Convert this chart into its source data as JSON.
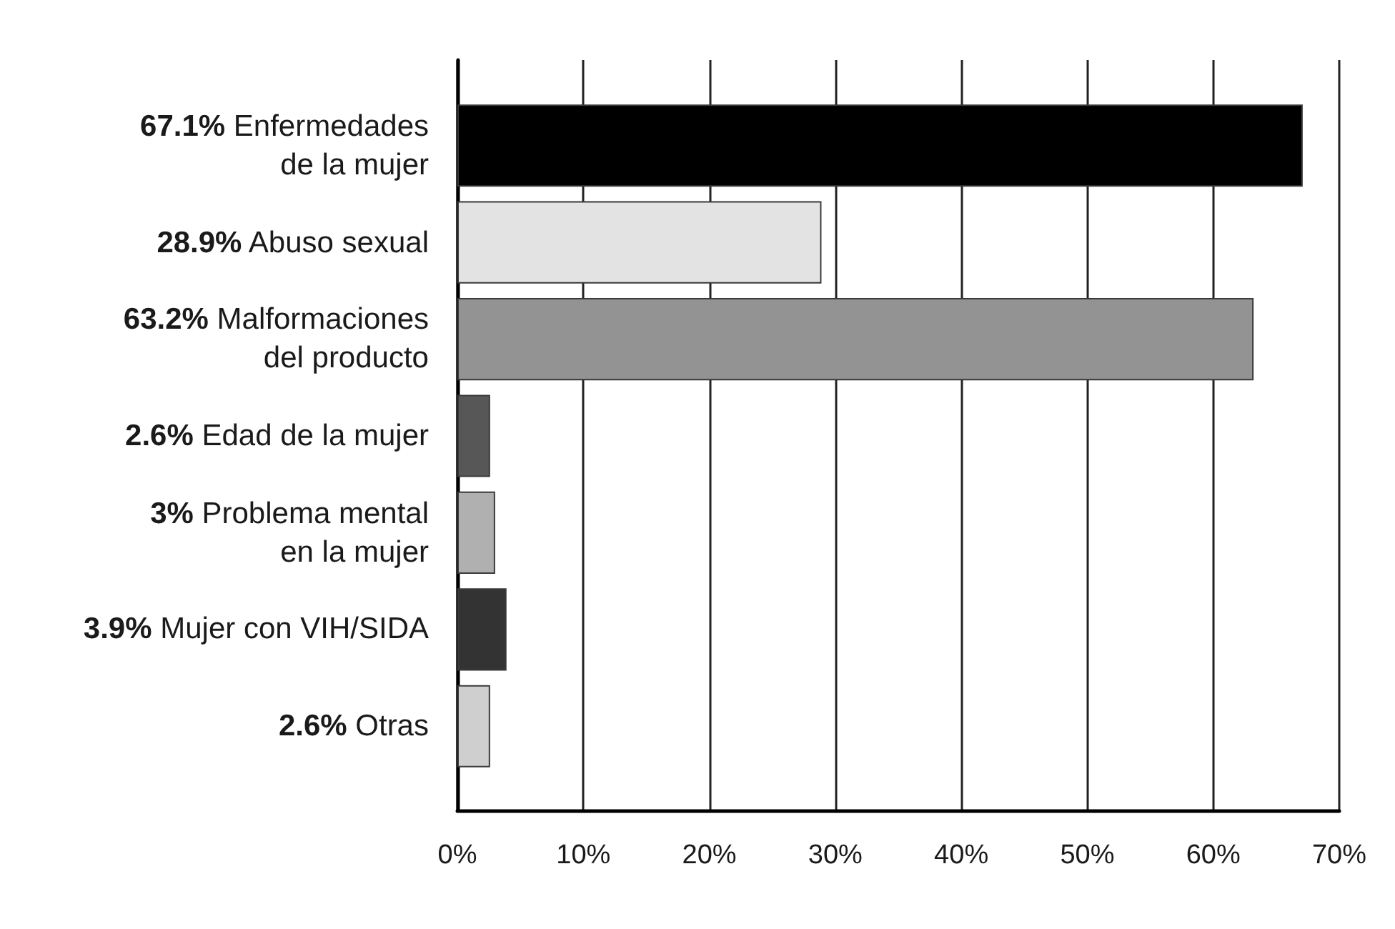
{
  "chart_data": {
    "type": "bar",
    "orientation": "horizontal",
    "categories": [
      "67.1% Enfermedades\nde la mujer",
      "28.9% Abuso sexual",
      "63.2% Malformaciones\ndel producto",
      "2.6% Edad de la mujer",
      "3% Problema mental\nen la mujer",
      "3.9% Mujer con VIH/SIDA",
      "2.6% Otras"
    ],
    "values": [
      67.1,
      28.9,
      63.2,
      2.6,
      3,
      3.9,
      2.6
    ],
    "colors": [
      "#000000",
      "#e3e3e3",
      "#939393",
      "#575757",
      "#b0b0b0",
      "#333333",
      "#cfcfcf"
    ],
    "xlim": [
      0,
      70
    ],
    "xticks": [
      {
        "value": 0,
        "label": "0%"
      },
      {
        "value": 10,
        "label": "10%"
      },
      {
        "value": 20,
        "label": "20%"
      },
      {
        "value": 30,
        "label": "30%"
      },
      {
        "value": 40,
        "label": "40%"
      },
      {
        "value": 50,
        "label": "50%"
      },
      {
        "value": 60,
        "label": "60%"
      },
      {
        "value": 70,
        "label": "70%"
      }
    ],
    "grid": "x"
  }
}
